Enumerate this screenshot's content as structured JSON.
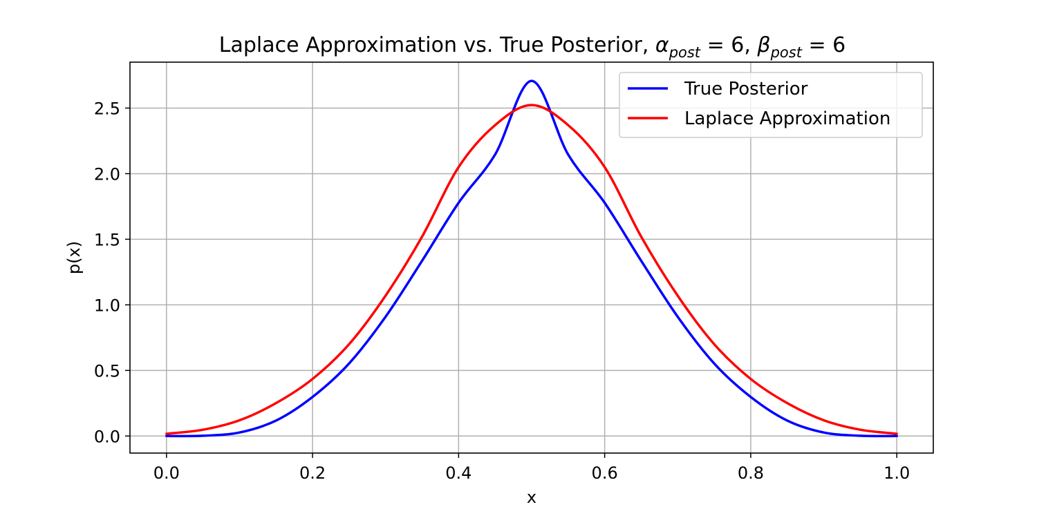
{
  "chart_data": {
    "type": "line",
    "title": {
      "prefix": "Laplace Approximation vs. True Posterior, ",
      "alpha_symbol": "α",
      "alpha_sub": "post",
      "alpha_value": " = 6",
      "separator": ", ",
      "beta_symbol": "β",
      "beta_sub": "post",
      "beta_value": " = 6"
    },
    "xlabel": "x",
    "ylabel": "p(x)",
    "xlim": [
      -0.05,
      1.05
    ],
    "ylim": [
      -0.13,
      2.85
    ],
    "xticks": [
      0.0,
      0.2,
      0.4,
      0.6,
      0.8,
      1.0
    ],
    "xtick_labels": [
      "0.0",
      "0.2",
      "0.4",
      "0.6",
      "0.8",
      "1.0"
    ],
    "yticks": [
      0.0,
      0.5,
      1.0,
      1.5,
      2.0,
      2.5
    ],
    "ytick_labels": [
      "0.0",
      "0.5",
      "1.0",
      "1.5",
      "2.0",
      "2.5"
    ],
    "grid": true,
    "legend_position": "top-right",
    "series": [
      {
        "name": "True Posterior",
        "color": "#0000ff",
        "x": [
          0.0,
          0.05,
          0.1,
          0.15,
          0.2,
          0.25,
          0.3,
          0.35,
          0.4,
          0.45,
          0.5,
          0.55,
          0.6,
          0.65,
          0.7,
          0.75,
          0.8,
          0.85,
          0.9,
          0.95,
          1.0
        ],
        "y": [
          0.0,
          0.002,
          0.027,
          0.118,
          0.298,
          0.553,
          0.909,
          1.336,
          1.778,
          2.146,
          2.707,
          2.146,
          1.778,
          1.336,
          0.909,
          0.553,
          0.298,
          0.118,
          0.027,
          0.002,
          0.0
        ]
      },
      {
        "name": "Laplace Approximation",
        "color": "#ff0000",
        "x": [
          0.0,
          0.05,
          0.1,
          0.15,
          0.2,
          0.25,
          0.3,
          0.35,
          0.4,
          0.45,
          0.5,
          0.55,
          0.6,
          0.65,
          0.7,
          0.75,
          0.8,
          0.85,
          0.9,
          0.95,
          1.0
        ],
        "y": [
          0.017,
          0.048,
          0.12,
          0.251,
          0.435,
          0.7,
          1.07,
          1.52,
          2.05,
          2.37,
          2.523,
          2.37,
          2.05,
          1.52,
          1.07,
          0.7,
          0.435,
          0.251,
          0.12,
          0.048,
          0.017
        ]
      }
    ]
  }
}
